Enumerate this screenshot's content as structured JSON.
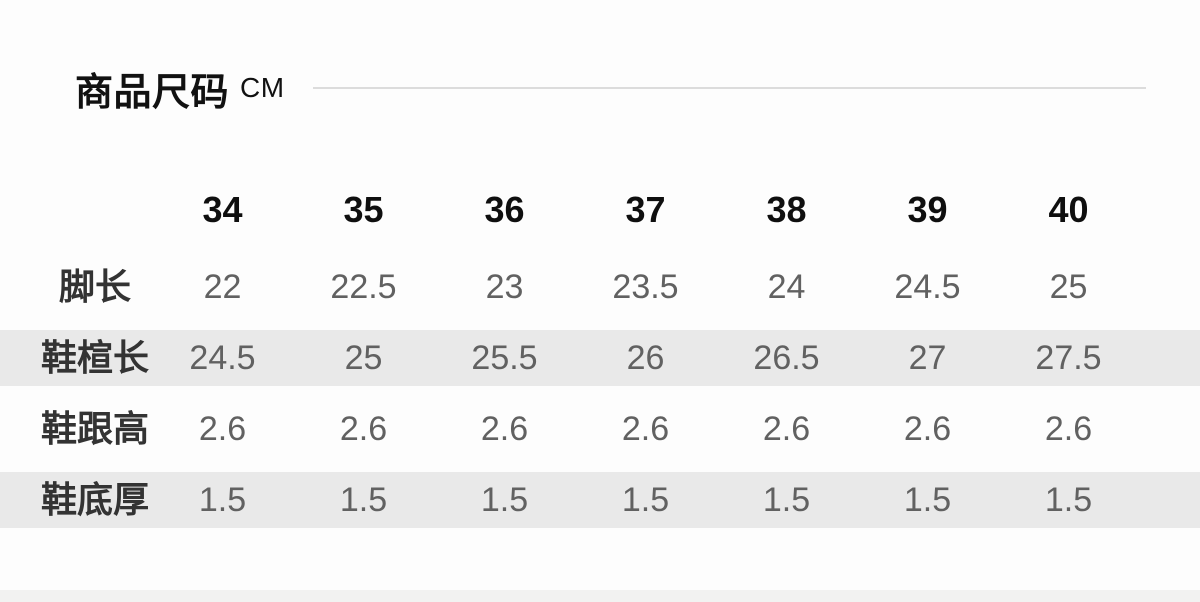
{
  "header": {
    "title": "商品尺码",
    "unit": "CM"
  },
  "size_table": {
    "columns": [
      "34",
      "35",
      "36",
      "37",
      "38",
      "39",
      "40"
    ],
    "rows": [
      {
        "label": "脚长",
        "shaded": false,
        "values": [
          "22",
          "22.5",
          "23",
          "23.5",
          "24",
          "24.5",
          "25"
        ]
      },
      {
        "label": "鞋楦长",
        "shaded": true,
        "values": [
          "24.5",
          "25",
          "25.5",
          "26",
          "26.5",
          "27",
          "27.5"
        ]
      },
      {
        "label": "鞋跟高",
        "shaded": false,
        "values": [
          "2.6",
          "2.6",
          "2.6",
          "2.6",
          "2.6",
          "2.6",
          "2.6"
        ]
      },
      {
        "label": "鞋底厚",
        "shaded": true,
        "values": [
          "1.5",
          "1.5",
          "1.5",
          "1.5",
          "1.5",
          "1.5",
          "1.5"
        ]
      }
    ]
  },
  "colors": {
    "shaded_row_bg": "#e9e9e9",
    "bottom_strip_bg": "#f2f2f1",
    "divider_line": "#dcdcdc",
    "header_text": "#0f0f0f",
    "label_text": "#333333",
    "value_text": "#616161"
  }
}
